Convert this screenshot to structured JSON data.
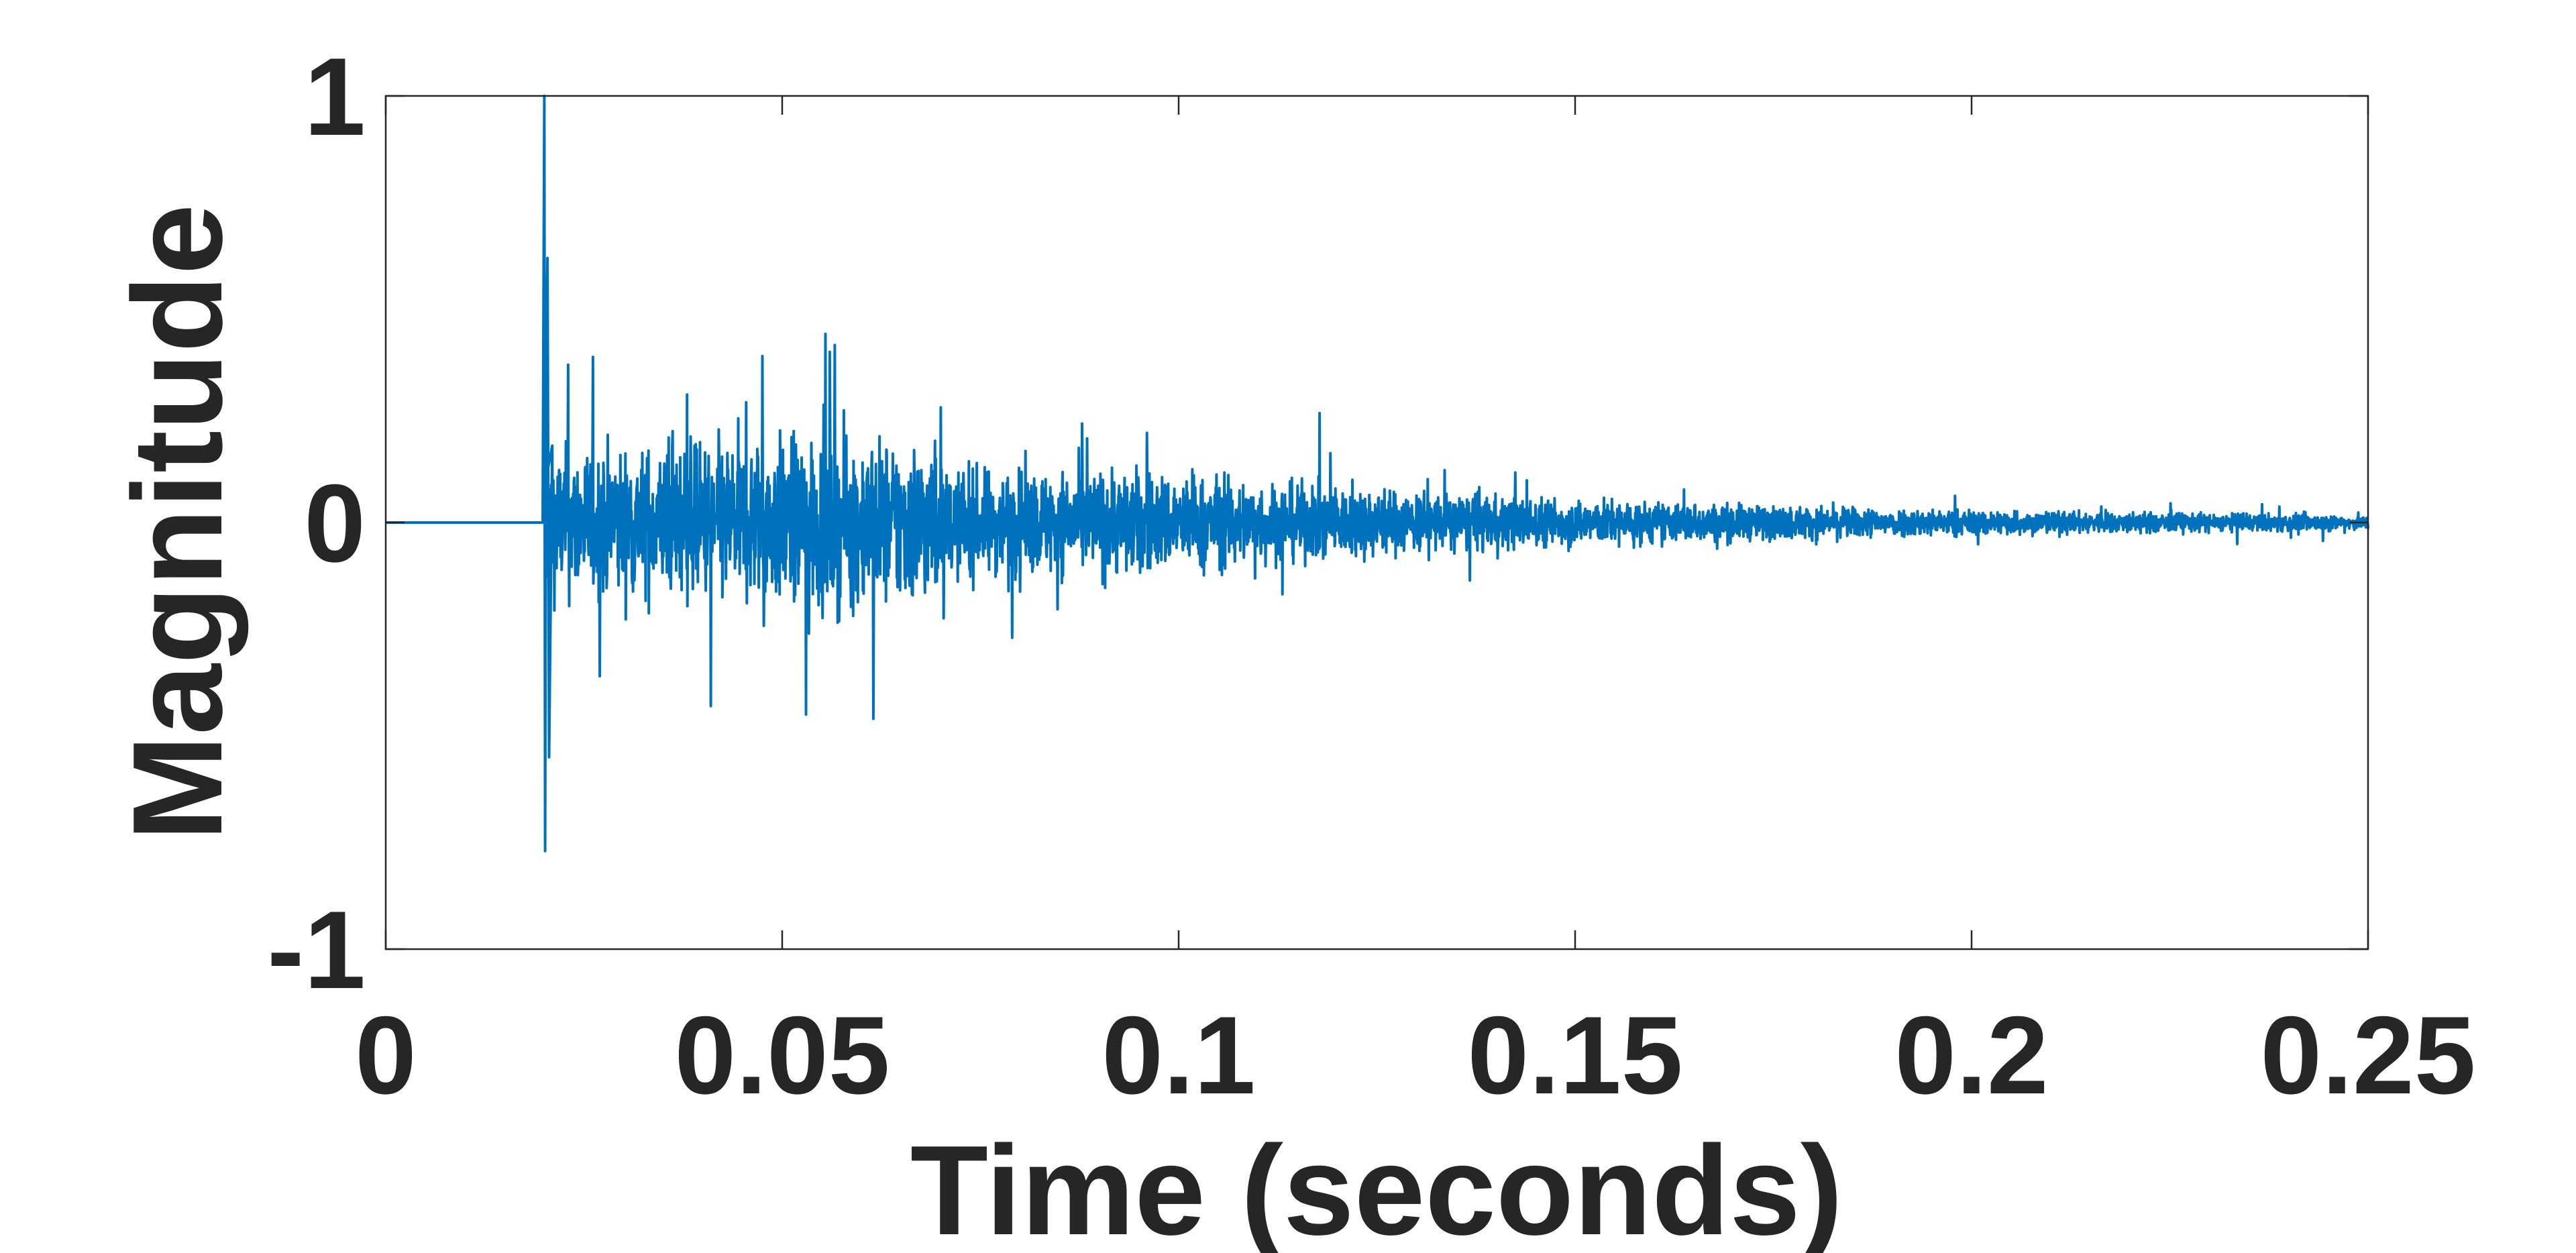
{
  "chart_data": {
    "type": "line",
    "title": "",
    "xlabel": "Time (seconds)",
    "ylabel": "Magnitude",
    "xlim": [
      0,
      0.25
    ],
    "ylim": [
      -1,
      1
    ],
    "xticks": [
      0,
      0.05,
      0.1,
      0.15,
      0.2,
      0.25
    ],
    "xtick_labels": [
      "0",
      "0.05",
      "0.1",
      "0.15",
      "0.2",
      "0.25"
    ],
    "yticks": [
      -1,
      0,
      1
    ],
    "ytick_labels": [
      "-1",
      "0",
      "1"
    ],
    "grid": false,
    "legend": "none",
    "line_color": "#0072BD",
    "series": [
      {
        "description_of_shape": [
          [
            0.0,
            0.0
          ],
          [
            0.0198,
            0.0
          ],
          [
            0.02,
            1.0
          ],
          [
            0.0201,
            -0.77
          ],
          [
            0.0202,
            0.3
          ],
          [
            0.0204,
            0.62
          ],
          [
            0.0206,
            -0.55
          ],
          [
            0.021,
            0.18
          ],
          [
            0.023,
            0.37
          ],
          [
            0.027,
            -0.36
          ],
          [
            0.038,
            0.3
          ],
          [
            0.041,
            -0.43
          ],
          [
            0.0475,
            0.39
          ],
          [
            0.053,
            -0.45
          ],
          [
            0.056,
            0.4
          ],
          [
            0.0615,
            -0.46
          ],
          [
            0.07,
            0.27
          ],
          [
            0.079,
            -0.27
          ],
          [
            0.096,
            0.21
          ],
          [
            0.101,
            -0.2
          ],
          [
            0.12,
            0.15
          ],
          [
            0.14,
            0.13
          ],
          [
            0.165,
            0.11
          ],
          [
            0.185,
            0.07
          ],
          [
            0.2,
            0.04
          ],
          [
            0.23,
            0.025
          ],
          [
            0.25,
            0.0
          ]
        ]
      }
    ]
  }
}
